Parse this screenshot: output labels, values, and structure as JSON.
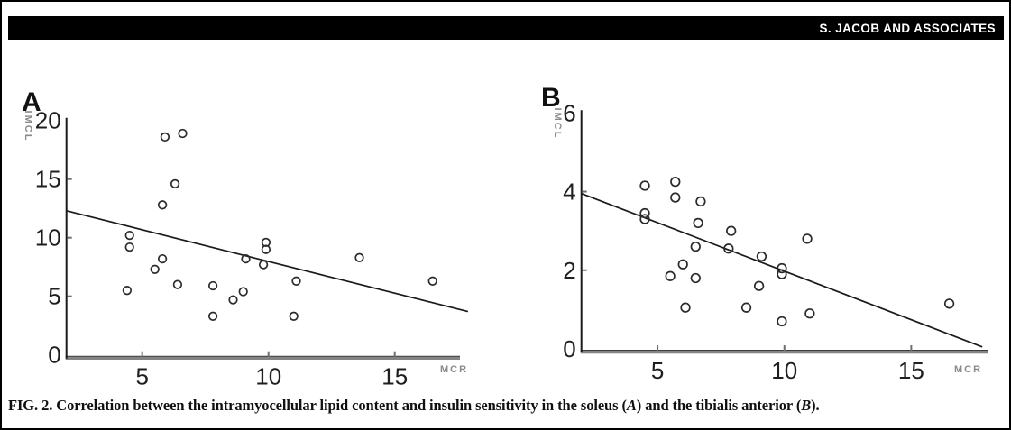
{
  "header": {
    "running_title": "S. JACOB AND ASSOCIATES"
  },
  "figure_caption": {
    "part1": "FIG. 2. Correlation between the intramyocellular lipid content and insulin sensitivity in the soleus (",
    "panel_a": "A",
    "part2": ") and the tibialis anterior (",
    "panel_b": "B",
    "part3": ")."
  },
  "colors": {
    "header_bg": "#000000",
    "header_text": "#ffffff",
    "axis": "#1a1a1a",
    "x_axis_band": "#848484",
    "tick_mark": "#6f6f6f",
    "marker": "#2b2b2b",
    "muted_label": "#8a8a8a"
  },
  "chart_data": [
    {
      "id": "A",
      "type": "scatter",
      "label": "A",
      "title": "",
      "xlabel": "MCR",
      "ylabel": "IMCL",
      "xlim": [
        2,
        18
      ],
      "ylim": [
        0,
        20
      ],
      "xticks": [
        5,
        10,
        15
      ],
      "yticks": [
        0,
        5,
        10,
        15,
        20
      ],
      "grid": false,
      "legend": "none",
      "regression_line": {
        "x1": 2.0,
        "y1": 12.3,
        "x2": 17.9,
        "y2": 3.7
      },
      "points": [
        [
          5.9,
          18.6
        ],
        [
          6.6,
          18.9
        ],
        [
          6.3,
          14.6
        ],
        [
          5.8,
          12.8
        ],
        [
          4.5,
          10.2
        ],
        [
          4.5,
          9.2
        ],
        [
          5.8,
          8.2
        ],
        [
          5.5,
          7.3
        ],
        [
          4.4,
          5.5
        ],
        [
          6.4,
          6.0
        ],
        [
          7.8,
          5.9
        ],
        [
          7.8,
          3.3
        ],
        [
          8.6,
          4.7
        ],
        [
          9.0,
          5.4
        ],
        [
          9.1,
          8.2
        ],
        [
          9.9,
          9.6
        ],
        [
          9.9,
          9.0
        ],
        [
          9.8,
          7.7
        ],
        [
          11.1,
          6.3
        ],
        [
          11.0,
          3.3
        ],
        [
          13.6,
          8.3
        ],
        [
          16.5,
          6.3
        ]
      ]
    },
    {
      "id": "B",
      "type": "scatter",
      "label": "B",
      "title": "",
      "xlabel": "MCR",
      "ylabel": "IMCL",
      "xlim": [
        2,
        18
      ],
      "ylim": [
        0,
        6
      ],
      "xticks": [
        5,
        10,
        15
      ],
      "yticks": [
        0,
        2,
        4,
        6
      ],
      "grid": false,
      "legend": "none",
      "regression_line": {
        "x1": 2.0,
        "y1": 3.95,
        "x2": 17.8,
        "y2": 0.05
      },
      "points": [
        [
          4.5,
          4.15
        ],
        [
          5.7,
          4.25
        ],
        [
          5.7,
          3.85
        ],
        [
          6.7,
          3.75
        ],
        [
          4.5,
          3.45
        ],
        [
          4.5,
          3.3
        ],
        [
          6.6,
          3.2
        ],
        [
          7.9,
          3.0
        ],
        [
          6.5,
          2.6
        ],
        [
          7.8,
          2.55
        ],
        [
          6.0,
          2.15
        ],
        [
          5.5,
          1.85
        ],
        [
          6.5,
          1.8
        ],
        [
          10.9,
          2.8
        ],
        [
          9.1,
          2.35
        ],
        [
          9.9,
          2.05
        ],
        [
          9.9,
          1.9
        ],
        [
          9.0,
          1.6
        ],
        [
          8.5,
          1.05
        ],
        [
          6.1,
          1.05
        ],
        [
          9.9,
          0.7
        ],
        [
          11.0,
          0.9
        ],
        [
          16.5,
          1.15
        ]
      ]
    }
  ]
}
